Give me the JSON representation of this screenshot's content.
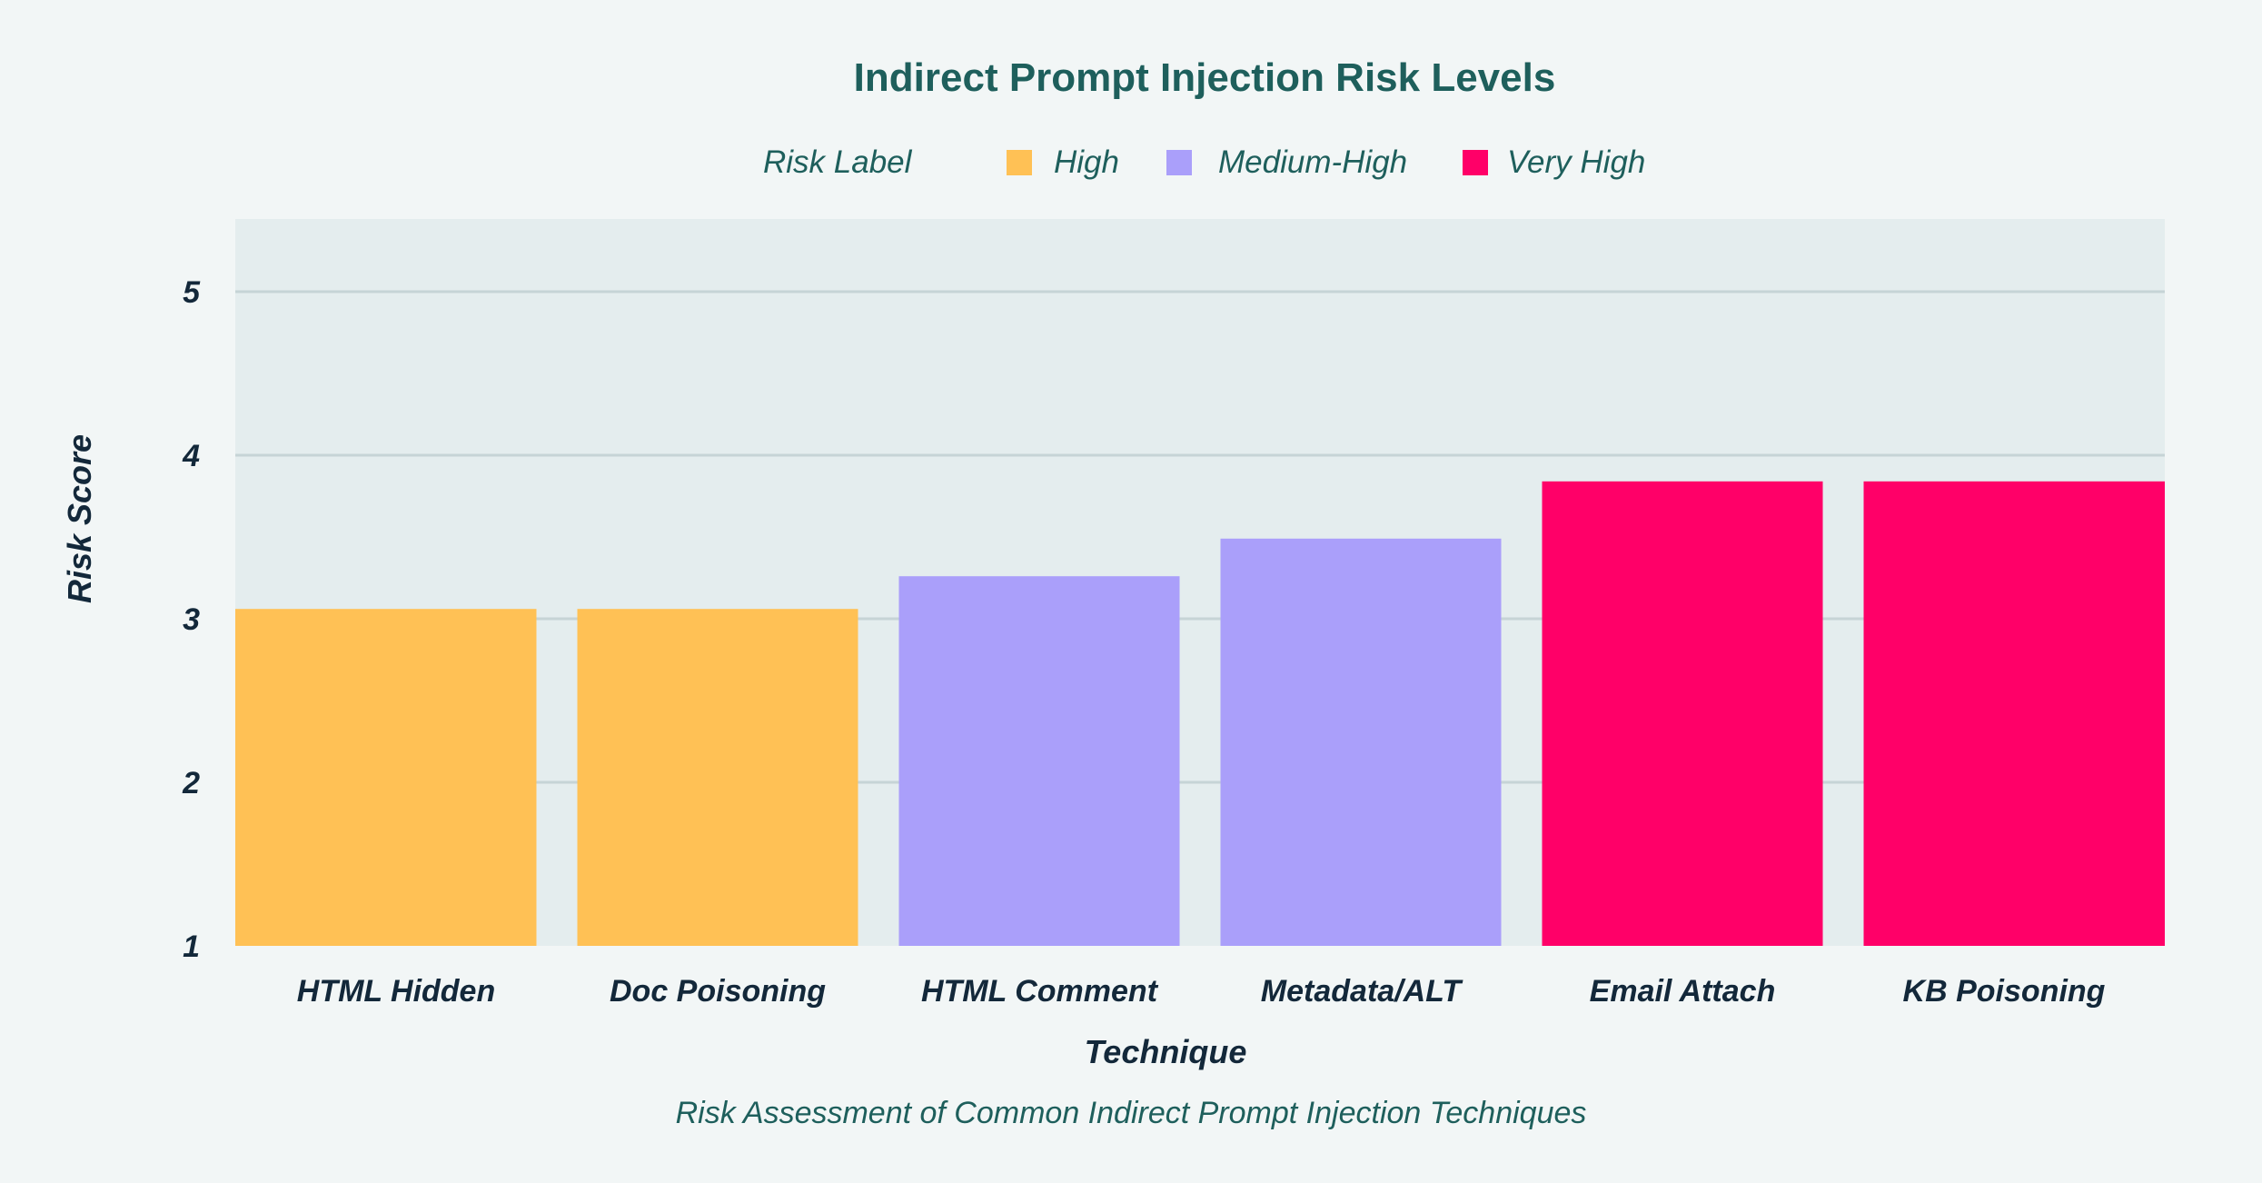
{
  "chart_data": {
    "type": "bar",
    "title": "Indirect Prompt Injection Risk Levels",
    "subtitle": "Risk Assessment of Common Indirect Prompt Injection Techniques",
    "xlabel": "Technique",
    "ylabel": "Risk Score",
    "ylim": [
      1,
      5.4
    ],
    "yticks": [
      1,
      2,
      3,
      4,
      5
    ],
    "grid": true,
    "legend": {
      "title": "Risk Label",
      "position": "top",
      "entries": [
        {
          "label": "High",
          "color": "#ffc155"
        },
        {
          "label": "Medium-High",
          "color": "#aa9ffa"
        },
        {
          "label": "Very High",
          "color": "#ff0068"
        }
      ]
    },
    "categories": [
      "HTML Hidden",
      "Doc Poisoning",
      "HTML Comment",
      "Metadata/ALT",
      "Email Attach",
      "KB Poisoning"
    ],
    "values": [
      3.06,
      3.06,
      3.26,
      3.49,
      3.84,
      3.84
    ],
    "risk_labels": [
      "High",
      "High",
      "Medium-High",
      "Medium-High",
      "Very High",
      "Very High"
    ]
  }
}
